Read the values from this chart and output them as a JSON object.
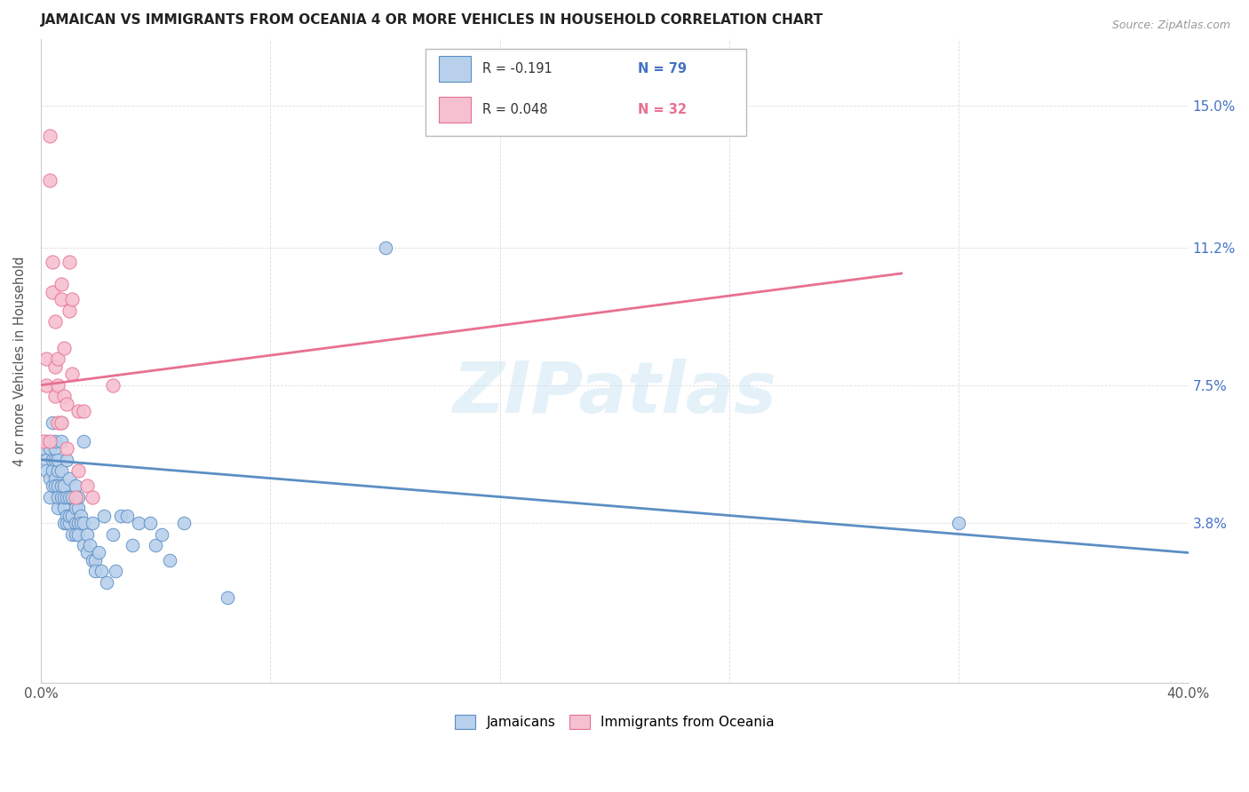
{
  "title": "JAMAICAN VS IMMIGRANTS FROM OCEANIA 4 OR MORE VEHICLES IN HOUSEHOLD CORRELATION CHART",
  "source": "Source: ZipAtlas.com",
  "ylabel": "4 or more Vehicles in Household",
  "ytick_labels": [
    "3.8%",
    "7.5%",
    "11.2%",
    "15.0%"
  ],
  "ytick_values": [
    0.038,
    0.075,
    0.112,
    0.15
  ],
  "xlim": [
    0.0,
    0.4
  ],
  "ylim": [
    -0.005,
    0.168
  ],
  "legend_blue_r": "R = -0.191",
  "legend_blue_n": "N = 79",
  "legend_pink_r": "R = 0.048",
  "legend_pink_n": "N = 32",
  "watermark": "ZIPatlas",
  "blue_color": "#b8d0eb",
  "blue_line_color": "#5b8ec4",
  "blue_edge_color": "#5b8ec4",
  "pink_color": "#f5c0d0",
  "pink_line_color": "#e87090",
  "pink_edge_color": "#e87090",
  "blue_scatter_x": [
    0.001,
    0.002,
    0.002,
    0.002,
    0.003,
    0.003,
    0.003,
    0.004,
    0.004,
    0.004,
    0.004,
    0.005,
    0.005,
    0.005,
    0.005,
    0.005,
    0.006,
    0.006,
    0.006,
    0.006,
    0.006,
    0.007,
    0.007,
    0.007,
    0.007,
    0.007,
    0.008,
    0.008,
    0.008,
    0.008,
    0.009,
    0.009,
    0.009,
    0.009,
    0.01,
    0.01,
    0.01,
    0.01,
    0.011,
    0.011,
    0.011,
    0.012,
    0.012,
    0.012,
    0.012,
    0.013,
    0.013,
    0.013,
    0.013,
    0.014,
    0.014,
    0.015,
    0.015,
    0.015,
    0.016,
    0.016,
    0.017,
    0.018,
    0.018,
    0.019,
    0.019,
    0.02,
    0.021,
    0.022,
    0.023,
    0.025,
    0.026,
    0.028,
    0.03,
    0.032,
    0.034,
    0.038,
    0.04,
    0.042,
    0.045,
    0.05,
    0.065,
    0.12,
    0.32
  ],
  "blue_scatter_y": [
    0.058,
    0.055,
    0.052,
    0.06,
    0.05,
    0.058,
    0.045,
    0.055,
    0.048,
    0.052,
    0.065,
    0.05,
    0.055,
    0.048,
    0.058,
    0.06,
    0.048,
    0.052,
    0.055,
    0.042,
    0.045,
    0.06,
    0.045,
    0.048,
    0.065,
    0.052,
    0.042,
    0.045,
    0.048,
    0.038,
    0.04,
    0.055,
    0.045,
    0.038,
    0.045,
    0.038,
    0.05,
    0.04,
    0.045,
    0.04,
    0.035,
    0.038,
    0.042,
    0.048,
    0.035,
    0.038,
    0.042,
    0.045,
    0.035,
    0.04,
    0.038,
    0.032,
    0.038,
    0.06,
    0.035,
    0.03,
    0.032,
    0.028,
    0.038,
    0.028,
    0.025,
    0.03,
    0.025,
    0.04,
    0.022,
    0.035,
    0.025,
    0.04,
    0.04,
    0.032,
    0.038,
    0.038,
    0.032,
    0.035,
    0.028,
    0.038,
    0.018,
    0.112,
    0.038
  ],
  "pink_scatter_x": [
    0.001,
    0.002,
    0.002,
    0.003,
    0.003,
    0.003,
    0.004,
    0.004,
    0.005,
    0.005,
    0.005,
    0.006,
    0.006,
    0.006,
    0.007,
    0.007,
    0.007,
    0.008,
    0.008,
    0.009,
    0.009,
    0.01,
    0.01,
    0.011,
    0.011,
    0.012,
    0.013,
    0.013,
    0.015,
    0.016,
    0.018,
    0.025
  ],
  "pink_scatter_y": [
    0.06,
    0.075,
    0.082,
    0.142,
    0.13,
    0.06,
    0.1,
    0.108,
    0.08,
    0.072,
    0.092,
    0.075,
    0.065,
    0.082,
    0.102,
    0.098,
    0.065,
    0.085,
    0.072,
    0.07,
    0.058,
    0.095,
    0.108,
    0.078,
    0.098,
    0.045,
    0.068,
    0.052,
    0.068,
    0.048,
    0.045,
    0.075
  ],
  "blue_trendline_x": [
    0.0,
    0.4
  ],
  "blue_trendline_y": [
    0.055,
    0.03
  ],
  "pink_trendline_x": [
    0.0,
    0.3
  ],
  "pink_trendline_y": [
    0.075,
    0.105
  ]
}
